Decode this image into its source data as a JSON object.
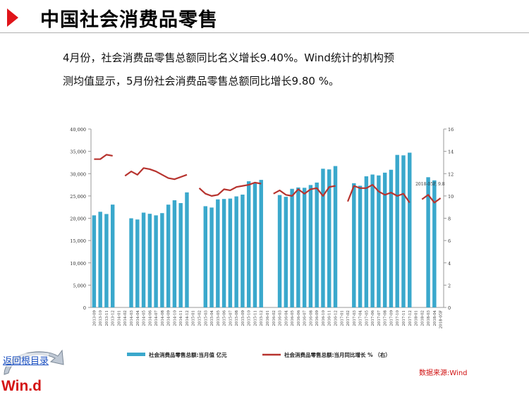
{
  "page": {
    "title": "中国社会消费品零售",
    "paragraph_line1": "4月份，社会消费品零售总额同比名义增长9.40%。Wind统计的机构预",
    "paragraph_line2": "测均值显示，5月份社会消费品零售总额同比增长9.80 %。",
    "source": "数据来源:Wind",
    "back_link": "返回根目录",
    "logo_text": "Win.d"
  },
  "colors": {
    "accent": "#e0141a",
    "bar": "#3aa8cc",
    "line": "#b7332e",
    "source": "#d01010"
  },
  "icons": {
    "title_marker": "triangle-right-icon",
    "back": "curved-arrow-icon"
  },
  "chart_data": {
    "type": "bar",
    "categories": [
      "2013-09",
      "2013-10",
      "2013-11",
      "2013-12",
      "2014-01",
      "2014-02",
      "2014-03",
      "2014-04",
      "2014-05",
      "2014-06",
      "2014-07",
      "2014-08",
      "2014-09",
      "2014-10",
      "2014-11",
      "2014-12",
      "2015-01",
      "2015-02",
      "2015-03",
      "2015-04",
      "2015-05",
      "2015-06",
      "2015-07",
      "2015-08",
      "2015-09",
      "2015-10",
      "2015-11",
      "2015-12",
      "2016-01",
      "2016-02",
      "2016-03",
      "2016-04",
      "2016-05",
      "2016-06",
      "2016-07",
      "2016-08",
      "2016-09",
      "2016-10",
      "2016-11",
      "2016-12",
      "2017-01",
      "2017-02",
      "2017-03",
      "2017-04",
      "2017-05",
      "2017-06",
      "2017-07",
      "2017-08",
      "2017-09",
      "2017-10",
      "2017-11",
      "2017-12",
      "2018-01",
      "2018-02",
      "2018-03",
      "2018-04",
      "2018-05F"
    ],
    "series": [
      {
        "name": "社会消费品零售总额:当月值 亿元",
        "type": "bar",
        "axis": "left",
        "values": [
          20650,
          21450,
          20950,
          23060,
          null,
          null,
          19990,
          19720,
          21260,
          21000,
          20650,
          21150,
          23050,
          24030,
          23400,
          25800,
          null,
          null,
          22700,
          22400,
          24230,
          24320,
          24410,
          24900,
          25300,
          28290,
          28000,
          28600,
          null,
          null,
          25200,
          24800,
          26600,
          26900,
          26830,
          27450,
          28000,
          31100,
          30950,
          31700,
          null,
          null,
          27850,
          27280,
          29400,
          29800,
          29600,
          30220,
          30870,
          34200,
          34100,
          34700,
          null,
          null,
          29200,
          28500,
          null
        ]
      },
      {
        "name": "社会消费品零售总额:当月同比增长 % （右）",
        "type": "line",
        "axis": "right",
        "values": [
          13.3,
          13.3,
          13.7,
          13.6,
          null,
          11.8,
          12.2,
          11.9,
          12.5,
          12.4,
          12.2,
          11.9,
          11.6,
          11.5,
          11.7,
          11.9,
          null,
          10.7,
          10.2,
          10.0,
          10.1,
          10.6,
          10.5,
          10.8,
          10.9,
          11.0,
          11.2,
          11.1,
          null,
          10.2,
          10.5,
          10.1,
          10.0,
          10.6,
          10.2,
          10.6,
          10.7,
          10.0,
          10.8,
          10.9,
          null,
          9.5,
          10.9,
          10.7,
          10.7,
          11.0,
          10.4,
          10.1,
          10.3,
          10.0,
          10.2,
          9.4,
          null,
          9.7,
          10.1,
          9.4,
          9.8
        ]
      }
    ],
    "annotation": "2018-05F, 9.8",
    "xlabel": "",
    "ylabel": "",
    "ylim": [
      0,
      40000
    ],
    "ylim_right": [
      0,
      16
    ],
    "yticks": [
      "0",
      "5,000",
      "10,000",
      "15,000",
      "20,000",
      "25,000",
      "30,000",
      "35,000",
      "40,000"
    ],
    "yticks_right": [
      "0",
      "2",
      "4",
      "6",
      "8",
      "10",
      "12",
      "14",
      "16"
    ],
    "grid": false,
    "legend_position": "bottom"
  }
}
